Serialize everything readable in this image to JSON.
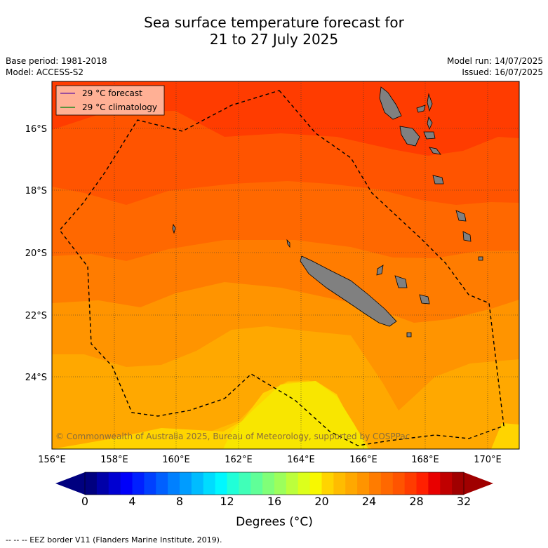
{
  "title": {
    "line1": "Sea surface temperature forecast for",
    "line2": "21 to 27 July 2025"
  },
  "meta": {
    "base_period": "Base period: 1981-2018",
    "model": "Model: ACCESS-S2",
    "model_run": "Model run: 14/07/2025",
    "issued": "Issued: 16/07/2025"
  },
  "legend": {
    "forecast": "29 °C  forecast",
    "forecast_color": "#7b2fa0",
    "climatology": "29 °C  climatology",
    "climatology_color": "#228b22"
  },
  "map": {
    "lon_range": [
      156,
      171
    ],
    "lat_range": [
      -26.3,
      -14.7
    ],
    "lon_ticks": [
      "156°E",
      "158°E",
      "160°E",
      "162°E",
      "164°E",
      "166°E",
      "168°E",
      "170°E"
    ],
    "lat_ticks": [
      "16°S",
      "18°S",
      "20°S",
      "22°S",
      "24°S"
    ],
    "copyright": "© Commonwealth of Australia 2025, Bureau of Meteorology, supported by COSPPac",
    "land_color": "#808080"
  },
  "colorbar": {
    "ticks": [
      "0",
      "4",
      "8",
      "12",
      "16",
      "20",
      "24",
      "28",
      "32"
    ],
    "label": "Degrees (°C)",
    "range": [
      0,
      32
    ],
    "step": 1,
    "colors": [
      "#00007f",
      "#0000a8",
      "#0000d1",
      "#0000fa",
      "#0020ff",
      "#0040ff",
      "#0060ff",
      "#0080ff",
      "#009cff",
      "#00bcff",
      "#00dcff",
      "#00f8ff",
      "#20ffd8",
      "#40ffb8",
      "#60ff98",
      "#80ff78",
      "#9cff5c",
      "#bcff3c",
      "#dcff1c",
      "#f8f800",
      "#ffd400",
      "#ffbc00",
      "#ffa800",
      "#ff9400",
      "#ff7c00",
      "#ff6800",
      "#ff5400",
      "#ff3c00",
      "#ff2000",
      "#e80000",
      "#c00000",
      "#a00000"
    ]
  },
  "footer": "--  --  -- EEZ border V11 (Flanders Marine Institute, 2019)."
}
